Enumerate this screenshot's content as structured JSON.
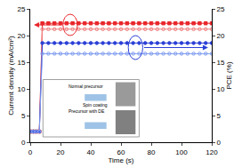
{
  "chart_data": {
    "type": "line",
    "x_label": "Time (s)",
    "y_label": "Current density (mA/cm²)",
    "y2_label": "PCE (%)",
    "x": [
      0,
      2,
      4,
      6,
      8,
      12,
      16,
      20,
      24,
      28,
      32,
      36,
      40,
      44,
      48,
      52,
      56,
      60,
      64,
      68,
      72,
      76,
      80,
      84,
      88,
      92,
      96,
      100,
      104,
      108,
      112,
      116,
      120
    ],
    "series": [
      {
        "color": "#e8262b",
        "marker": "square",
        "axis": "y",
        "values": [
          2,
          2,
          2,
          2,
          22.3,
          22.3,
          22.3,
          22.3,
          22.3,
          22.3,
          22.3,
          22.3,
          22.3,
          22.3,
          22.3,
          22.3,
          22.3,
          22.3,
          22.3,
          22.3,
          22.3,
          22.3,
          22.3,
          22.3,
          22.3,
          22.3,
          22.3,
          22.3,
          22.3,
          22.3,
          22.3,
          22.3,
          22.3
        ]
      },
      {
        "color": "#f08080",
        "marker": "circle-open",
        "axis": "y",
        "values": [
          2,
          2,
          2,
          2,
          21.2,
          21.2,
          21.2,
          21.2,
          21.2,
          21.2,
          21.2,
          21.2,
          21.2,
          21.2,
          21.2,
          21.2,
          21.2,
          21.2,
          21.2,
          21.2,
          21.2,
          21.2,
          21.2,
          21.2,
          21.2,
          21.2,
          21.2,
          21.2,
          21.2,
          21.2,
          21.2,
          21.2,
          21.2
        ]
      },
      {
        "color": "#2a3fd6",
        "marker": "circle",
        "axis": "y2",
        "values": [
          2,
          2,
          2,
          2,
          18.6,
          18.6,
          18.6,
          18.6,
          18.6,
          18.6,
          18.6,
          18.6,
          18.6,
          18.6,
          18.6,
          18.6,
          18.6,
          18.6,
          18.6,
          18.6,
          18.6,
          18.6,
          18.6,
          18.6,
          18.6,
          18.6,
          18.6,
          18.6,
          18.6,
          18.6,
          18.6,
          18.6,
          18.6
        ]
      },
      {
        "color": "#7f9cf0",
        "marker": "circle-open",
        "axis": "y2",
        "values": [
          2,
          2,
          2,
          2,
          16.6,
          16.6,
          16.6,
          16.6,
          16.6,
          16.6,
          16.6,
          16.6,
          16.6,
          16.6,
          16.6,
          16.6,
          16.6,
          16.6,
          16.6,
          16.6,
          16.6,
          16.6,
          16.6,
          16.6,
          16.6,
          16.6,
          16.6,
          16.6,
          16.6,
          16.6,
          16.6,
          16.6,
          16.6
        ]
      }
    ],
    "xlim": [
      0,
      120
    ],
    "xticks": [
      0,
      20,
      40,
      60,
      80,
      100,
      120
    ],
    "ylim": [
      0,
      25
    ],
    "yticks": [
      0,
      5,
      10,
      15,
      20,
      25
    ],
    "y2lim": [
      0,
      25
    ],
    "y2ticks": [
      0,
      5,
      10,
      15,
      20,
      25
    ],
    "grid": false,
    "annotations": [
      "Normal precursor",
      "Spin coating",
      "Precursor with DE"
    ]
  }
}
